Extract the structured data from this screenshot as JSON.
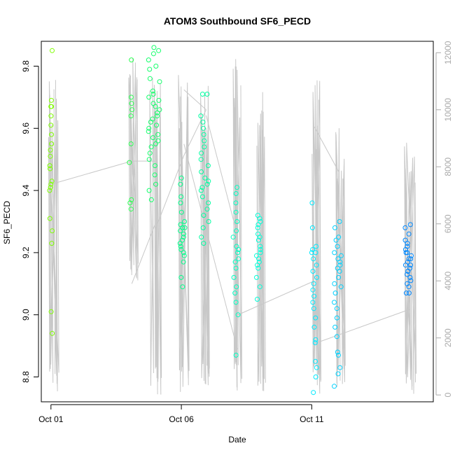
{
  "chart_data": {
    "type": "scatter",
    "title": "ATOM3 Southbound SF6_PECD",
    "xlabel": "Date",
    "ylabel": "SF6_PECD",
    "x_ticks": [
      "Oct 01",
      "Oct 06",
      "Oct 11"
    ],
    "x_tick_days": [
      0,
      5,
      10
    ],
    "xlim_days": [
      -0.37,
      14.66
    ],
    "ylim": [
      8.72,
      9.88
    ],
    "y_ticks": [
      "8.8",
      "9.0",
      "9.2",
      "9.4",
      "9.6",
      "9.8"
    ],
    "y_tick_values": [
      8.8,
      9.0,
      9.2,
      9.4,
      9.6,
      9.8
    ],
    "right_axis": {
      "ylim": [
        -240,
        12400
      ],
      "ticks": [
        "0",
        "2000",
        "4000",
        "6000",
        "8000",
        "10000",
        "12000"
      ],
      "tick_values": [
        0,
        2000,
        4000,
        6000,
        8000,
        10000,
        12000
      ],
      "color": "#aaaaaa"
    },
    "grid": false,
    "legend": "none",
    "series": [
      {
        "type": "points",
        "color_scale": [
          "#7fff00",
          "#00ff7f",
          "#00ffff",
          "#0080ff"
        ],
        "clusters": [
          {
            "day": 0.0,
            "spread": 0.05,
            "values": [
              9.85,
              9.69,
              9.67,
              9.67,
              9.64,
              9.61,
              9.58,
              9.55,
              9.53,
              9.51,
              9.48,
              9.47,
              9.43,
              9.42,
              9.41,
              9.4,
              9.31,
              9.27,
              9.23,
              9.01,
              8.94
            ]
          },
          {
            "day": 3.05,
            "spread": 0.06,
            "values": [
              9.82,
              9.7,
              9.68,
              9.66,
              9.64,
              9.55,
              9.49,
              9.37,
              9.36,
              9.34
            ]
          },
          {
            "day": 3.95,
            "spread": 0.22,
            "values": [
              9.86,
              9.85,
              9.84,
              9.82,
              9.8,
              9.79,
              9.76,
              9.75,
              9.72,
              9.71,
              9.7,
              9.69,
              9.68,
              9.67,
              9.66,
              9.65,
              9.64,
              9.63,
              9.62,
              9.61,
              9.6,
              9.59,
              9.58,
              9.57,
              9.56,
              9.55,
              9.54,
              9.52,
              9.5,
              9.48,
              9.45,
              9.42,
              9.4,
              9.37
            ]
          },
          {
            "day": 5.05,
            "spread": 0.1,
            "values": [
              9.44,
              9.42,
              9.38,
              9.36,
              9.33,
              9.3,
              9.29,
              9.28,
              9.28,
              9.27,
              9.26,
              9.25,
              9.24,
              9.23,
              9.22,
              9.21,
              9.2,
              9.19,
              9.17,
              9.12,
              9.09
            ]
          },
          {
            "day": 5.9,
            "spread": 0.16,
            "values": [
              9.71,
              9.71,
              9.64,
              9.62,
              9.6,
              9.58,
              9.56,
              9.54,
              9.52,
              9.5,
              9.48,
              9.46,
              9.44,
              9.43,
              9.42,
              9.41,
              9.4,
              9.38,
              9.36,
              9.34,
              9.32,
              9.3,
              9.28,
              9.25,
              9.23
            ]
          },
          {
            "day": 7.1,
            "spread": 0.12,
            "values": [
              9.41,
              9.39,
              9.36,
              9.33,
              9.3,
              9.27,
              9.25,
              9.22,
              9.21,
              9.2,
              9.18,
              9.17,
              9.15,
              9.12,
              9.09,
              9.07,
              9.04,
              9.0,
              8.87
            ]
          },
          {
            "day": 7.95,
            "spread": 0.09,
            "values": [
              9.32,
              9.31,
              9.3,
              9.29,
              9.28,
              9.26,
              9.25,
              9.24,
              9.22,
              9.21,
              9.2,
              9.19,
              9.18,
              9.17,
              9.16,
              9.15,
              9.12,
              9.09,
              9.05
            ]
          },
          {
            "day": 10.1,
            "spread": 0.1,
            "values": [
              9.36,
              9.28,
              9.22,
              9.21,
              9.2,
              9.2,
              9.18,
              9.16,
              9.14,
              9.12,
              9.1,
              9.08,
              9.06,
              9.04,
              9.02,
              8.99,
              8.96,
              8.92,
              8.91,
              8.85,
              8.83,
              8.8,
              8.75
            ]
          },
          {
            "day": 11.0,
            "spread": 0.14,
            "values": [
              9.3,
              9.28,
              9.25,
              9.24,
              9.22,
              9.2,
              9.19,
              9.18,
              9.17,
              9.16,
              9.15,
              9.14,
              9.12,
              9.1,
              9.09,
              9.07,
              9.04,
              9.02,
              8.99,
              8.96,
              8.93,
              8.88,
              8.87,
              8.83,
              8.81,
              8.77
            ]
          },
          {
            "day": 13.7,
            "spread": 0.12,
            "values": [
              9.29,
              9.28,
              9.26,
              9.24,
              9.23,
              9.22,
              9.21,
              9.2,
              9.2,
              9.19,
              9.18,
              9.18,
              9.17,
              9.16,
              9.16,
              9.15,
              9.14,
              9.14,
              9.13,
              9.12,
              9.11,
              9.1,
              9.09,
              9.07,
              9.07
            ]
          }
        ]
      },
      {
        "type": "line",
        "color": "#c8c8c8",
        "axis": "right",
        "name_visible": false,
        "profiles": [
          {
            "day": 0.05,
            "min": 0,
            "max": 11600
          },
          {
            "day": 3.1,
            "min": 4000,
            "max": 12000
          },
          {
            "day": 4.0,
            "min": 0,
            "max": 11500
          },
          {
            "day": 5.1,
            "min": 0,
            "max": 12200
          },
          {
            "day": 5.95,
            "min": 0,
            "max": 11200
          },
          {
            "day": 7.15,
            "min": 0,
            "max": 11800
          },
          {
            "day": 8.0,
            "min": 0,
            "max": 10700
          },
          {
            "day": 10.1,
            "min": 0,
            "max": 11100
          },
          {
            "day": 11.05,
            "min": 200,
            "max": 9500
          },
          {
            "day": 13.75,
            "min": 0,
            "max": 9300
          }
        ],
        "transits": [
          [
            0.05,
            7400,
            3.1,
            8200
          ],
          [
            3.1,
            8200,
            4.0,
            8200
          ],
          [
            3.1,
            3900,
            4.0,
            6000
          ],
          [
            4.0,
            5800,
            5.1,
            8400
          ],
          [
            5.1,
            8400,
            5.95,
            10000
          ],
          [
            5.1,
            10700,
            5.95,
            10000
          ],
          [
            5.95,
            9800,
            7.15,
            5600
          ],
          [
            5.1,
            8800,
            7.15,
            1600
          ],
          [
            7.15,
            2800,
            10.1,
            4000
          ],
          [
            10.1,
            9400,
            11.05,
            7800
          ],
          [
            10.1,
            1800,
            13.75,
            3000
          ]
        ]
      }
    ]
  }
}
